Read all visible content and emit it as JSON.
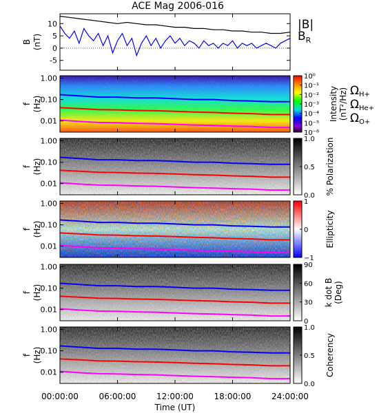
{
  "chart_data": [
    {
      "type": "line",
      "title": "ACE Mag 2006-016",
      "ylabel": "B",
      "yunit": "(nT)",
      "ylim": [
        -9,
        14
      ],
      "yticks": [
        -5,
        0,
        5,
        10
      ],
      "xlim": [
        0,
        24
      ],
      "series": [
        {
          "name": "|B|",
          "color": "#000000",
          "x": [
            0,
            1,
            2,
            3,
            4,
            5,
            6,
            7,
            8,
            9,
            10,
            11,
            12,
            13,
            14,
            15,
            16,
            17,
            18,
            19,
            20,
            21,
            22,
            23,
            24
          ],
          "values": [
            13,
            12.5,
            12,
            11.5,
            11,
            10.5,
            10,
            10.5,
            10,
            9.5,
            9.5,
            9,
            8.5,
            8.5,
            8,
            8,
            7.5,
            7.5,
            7,
            7,
            6.5,
            6.5,
            6,
            6,
            6.5
          ]
        },
        {
          "name": "B",
          "subscript": "R",
          "color": "#0000ff",
          "x": [
            0,
            0.5,
            1,
            1.5,
            2,
            2.5,
            3,
            3.5,
            4,
            4.5,
            5,
            5.5,
            6,
            6.5,
            7,
            7.5,
            8,
            8.5,
            9,
            9.5,
            10,
            10.5,
            11,
            11.5,
            12,
            12.5,
            13,
            13.5,
            14,
            14.5,
            15,
            15.5,
            16,
            16.5,
            17,
            17.5,
            18,
            18.5,
            19,
            19.5,
            20,
            20.5,
            21,
            21.5,
            22,
            22.5,
            23,
            23.5,
            24
          ],
          "values": [
            9,
            6,
            4,
            7,
            2,
            8,
            5,
            3,
            6,
            1,
            5,
            -2,
            3,
            6,
            1,
            4,
            -3,
            2,
            5,
            1,
            4,
            0,
            3,
            5,
            2,
            4,
            1,
            3,
            2,
            0,
            3,
            1,
            2,
            0,
            2,
            1,
            3,
            0,
            2,
            1,
            2,
            0,
            1,
            2,
            1,
            0,
            2,
            3,
            4
          ]
        }
      ]
    },
    {
      "type": "heatmap",
      "ylabel": "f",
      "yunit": "(Hz)",
      "colorbar": {
        "label": "Intensity",
        "unit": "(nT²/Hz)",
        "ticks": [
          "10⁰",
          "10⁻¹",
          "10⁻²",
          "10⁻³",
          "10⁻⁴",
          "10⁻⁵",
          "10⁻⁶"
        ]
      }
    },
    {
      "type": "heatmap",
      "ylabel": "f",
      "yunit": "(Hz)",
      "colorbar": {
        "label": "% Polarization",
        "ticks": [
          "1.0",
          "0.5",
          "0.0"
        ]
      }
    },
    {
      "type": "heatmap",
      "ylabel": "f",
      "yunit": "(Hz)",
      "colorbar": {
        "label": "Ellipticity",
        "ticks": [
          "1",
          "0",
          "−1"
        ]
      }
    },
    {
      "type": "heatmap",
      "ylabel": "f",
      "yunit": "(Hz)",
      "colorbar": {
        "label": "k dot B",
        "unit": "(Deg)",
        "ticks": [
          "90",
          "60",
          "30",
          "0"
        ]
      }
    },
    {
      "type": "heatmap",
      "ylabel": "f",
      "yunit": "(Hz)",
      "colorbar": {
        "label": "Coherency",
        "ticks": [
          "1.0",
          "0.5",
          "0.0"
        ]
      }
    }
  ],
  "freq_axis": {
    "ticks": [
      "1.00",
      "0.10",
      "0.01"
    ],
    "log": true,
    "range": [
      0.003,
      1.3
    ]
  },
  "gyro_lines": [
    {
      "symbol": "Ω",
      "sub": "H+",
      "color": "#0000ff",
      "x": [
        0,
        2,
        4,
        6,
        8,
        10,
        12,
        14,
        16,
        18,
        20,
        22,
        24
      ],
      "values": [
        0.17,
        0.15,
        0.13,
        0.13,
        0.12,
        0.12,
        0.11,
        0.1,
        0.1,
        0.09,
        0.085,
        0.08,
        0.08
      ]
    },
    {
      "symbol": "Ω",
      "sub": "He+",
      "color": "#ff0000",
      "x": [
        0,
        2,
        4,
        6,
        8,
        10,
        12,
        14,
        16,
        18,
        20,
        22,
        24
      ],
      "values": [
        0.042,
        0.038,
        0.034,
        0.033,
        0.031,
        0.03,
        0.028,
        0.026,
        0.025,
        0.023,
        0.022,
        0.02,
        0.02
      ]
    },
    {
      "symbol": "Ω",
      "sub": "O+",
      "color": "#ff00ff",
      "x": [
        0,
        2,
        4,
        6,
        8,
        10,
        12,
        14,
        16,
        18,
        20,
        22,
        24
      ],
      "values": [
        0.011,
        0.0095,
        0.0085,
        0.0083,
        0.0078,
        0.0075,
        0.007,
        0.0065,
        0.0062,
        0.0058,
        0.0055,
        0.005,
        0.005
      ]
    }
  ],
  "x_axis": {
    "label": "Time (UT)",
    "ticks": [
      "00:00:00",
      "06:00:00",
      "12:00:00",
      "18:00:00",
      "24:00:00"
    ],
    "range": [
      0,
      24
    ]
  },
  "colors": {
    "blue": "#0000ff",
    "red": "#ff0000",
    "magenta": "#ff00ff",
    "black": "#000000"
  }
}
